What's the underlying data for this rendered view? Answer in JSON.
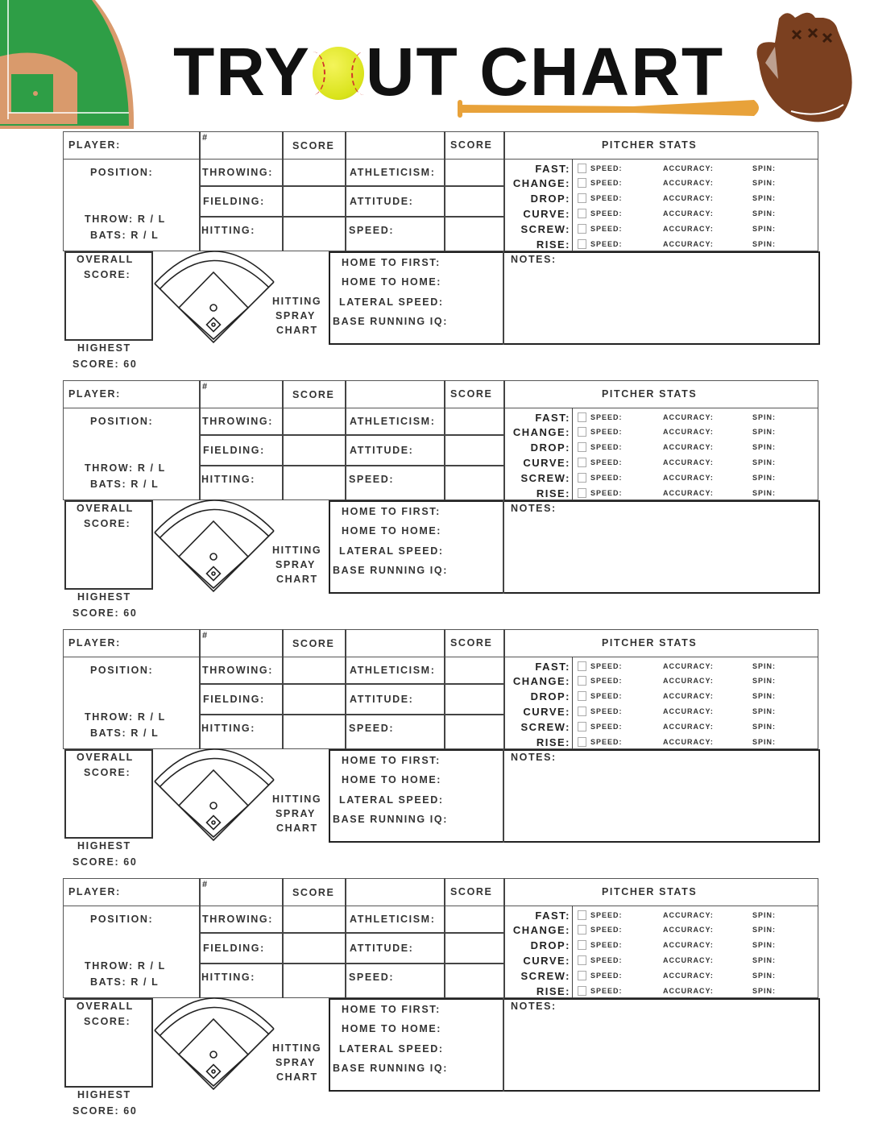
{
  "header": {
    "title_part1": "TRY",
    "title_ball": "softball-icon",
    "title_part2": "UT CHART",
    "left_image": "baseball-field-icon",
    "bat_image": "bat-icon",
    "right_image": "glove-icon"
  },
  "colors": {
    "field_green": "#2e9e46",
    "dirt": "#d99a6c",
    "bat": "#e8a23a",
    "glove": "#7b4020",
    "ball": "#dde21e"
  },
  "form": {
    "player": "PLAYER:",
    "number": "#",
    "score1": "SCORE",
    "score2": "SCORE",
    "pitcher_stats": "PITCHER STATS",
    "position": "POSITION:",
    "throw": "THROW: R / L",
    "bats": "BATS: R / L",
    "throwing": "THROWING:",
    "fielding": "FIELDING:",
    "hitting": "HITTING:",
    "athleticism": "ATHLETICISM:",
    "attitude": "ATTITUDE:",
    "speed": "SPEED:",
    "pitches": [
      "FAST:",
      "CHANGE:",
      "DROP:",
      "CURVE:",
      "SCREW:",
      "RISE:"
    ],
    "pitch_speed": "SPEED:",
    "pitch_accuracy": "ACCURACY:",
    "pitch_spin": "SPIN:",
    "overall": "OVERALL",
    "overall_score": "SCORE:",
    "highest": "HIGHEST",
    "highest_score": "SCORE: 60",
    "spray1": "HITTING",
    "spray2": "SPRAY",
    "spray3": "CHART",
    "home_to_first": "HOME TO FIRST:",
    "home_to_home": "HOME TO HOME:",
    "lateral_speed": "LATERAL SPEED:",
    "base_running_iq": "BASE RUNNING IQ:",
    "notes": "NOTES:"
  },
  "block_count": 4
}
